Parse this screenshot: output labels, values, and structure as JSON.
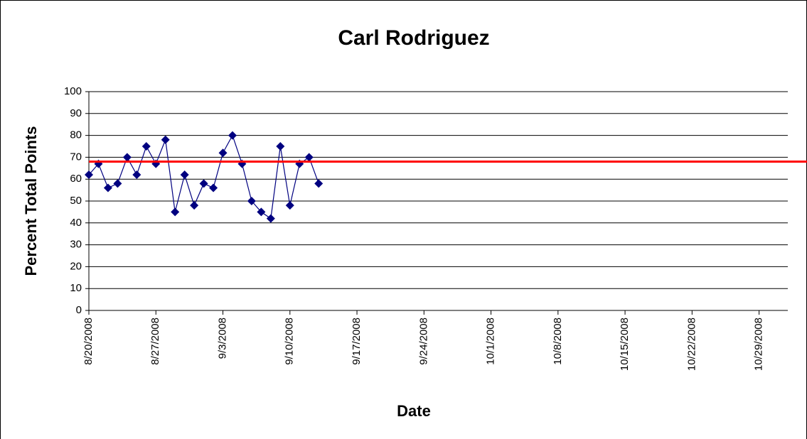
{
  "chart_data": {
    "type": "line",
    "title": "Carl Rodriguez",
    "x_label": "Date",
    "y_label": "Percent Total Points",
    "x": [
      "8/20/2008",
      "8/21/2008",
      "8/22/2008",
      "8/23/2008",
      "8/24/2008",
      "8/25/2008",
      "8/26/2008",
      "8/27/2008",
      "8/28/2008",
      "8/29/2008",
      "8/30/2008",
      "8/31/2008",
      "9/1/2008",
      "9/2/2008",
      "9/3/2008",
      "9/4/2008",
      "9/5/2008",
      "9/6/2008",
      "9/7/2008",
      "9/8/2008",
      "9/9/2008",
      "9/10/2008",
      "9/11/2008",
      "9/12/2008",
      "9/13/2008"
    ],
    "series": [
      {
        "name": "Percent Total Points",
        "color": "#000080",
        "values": [
          62,
          67,
          56,
          58,
          70,
          62,
          75,
          67,
          78,
          45,
          62,
          48,
          58,
          56,
          72,
          80,
          67,
          50,
          45,
          42,
          75,
          48,
          67,
          70,
          58
        ]
      }
    ],
    "reference_line": {
      "value": 68,
      "color": "#ff0000"
    },
    "xlim": [
      "8/20/2008",
      "11/1/2008"
    ],
    "xticks": [
      "8/20/2008",
      "8/27/2008",
      "9/3/2008",
      "9/10/2008",
      "9/17/2008",
      "9/24/2008",
      "10/1/2008",
      "10/8/2008",
      "10/15/2008",
      "10/22/2008",
      "10/29/2008"
    ],
    "ylim": [
      0,
      100
    ],
    "yticks": [
      0,
      10,
      20,
      30,
      40,
      50,
      60,
      70,
      80,
      90,
      100
    ],
    "grid": true
  }
}
